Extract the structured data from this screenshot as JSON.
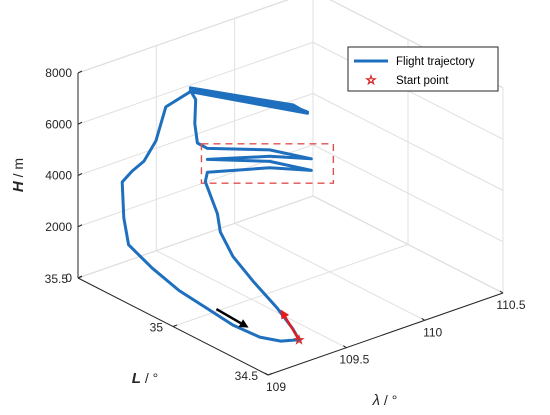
{
  "chart_data": {
    "type": "line",
    "projection": "3d",
    "xlabel": {
      "italic": "λ",
      "unit": " / °"
    },
    "ylabel": {
      "italic": "L",
      "unit": " / °"
    },
    "zlabel": {
      "italic": "H",
      "unit": " / m"
    },
    "xlim": [
      109,
      110.5
    ],
    "ylim": [
      34.5,
      35.5
    ],
    "zlim": [
      0,
      8000
    ],
    "xticks": [
      "109",
      "109.5",
      "110",
      "110.5"
    ],
    "yticks": [
      "34.5",
      "35",
      "35.5"
    ],
    "zticks": [
      "0",
      "2000",
      "4000",
      "6000",
      "8000"
    ],
    "grid": true,
    "legend_position": "top-right",
    "series": [
      {
        "name": "Flight trajectory",
        "color": "#1f6fbf",
        "points": [
          [
            109.38,
            34.65,
            0
          ],
          [
            109.4,
            34.7,
            200
          ],
          [
            109.42,
            34.8,
            600
          ],
          [
            109.45,
            34.95,
            1000
          ],
          [
            109.48,
            35.08,
            1400
          ],
          [
            109.52,
            35.18,
            1900
          ],
          [
            109.55,
            35.22,
            2400
          ],
          [
            109.57,
            35.3,
            3300
          ],
          [
            109.62,
            35.33,
            3450
          ],
          [
            109.86,
            35.2,
            3600
          ],
          [
            109.98,
            35.08,
            3700
          ],
          [
            109.86,
            35.2,
            3850
          ],
          [
            109.62,
            35.33,
            3950
          ],
          [
            109.86,
            35.2,
            4050
          ],
          [
            109.98,
            35.08,
            4150
          ],
          [
            109.86,
            35.2,
            4300
          ],
          [
            109.62,
            35.33,
            4380
          ],
          [
            109.58,
            35.35,
            4600
          ],
          [
            109.6,
            35.38,
            5200
          ],
          [
            109.63,
            35.4,
            6000
          ],
          [
            109.62,
            35.42,
            6300
          ],
          [
            109.95,
            35.15,
            6000
          ],
          [
            109.98,
            35.1,
            5900
          ],
          [
            109.62,
            35.42,
            6400
          ],
          [
            109.95,
            35.15,
            6050
          ],
          [
            109.98,
            35.1,
            5850
          ],
          [
            109.62,
            35.42,
            6250
          ],
          [
            109.5,
            35.45,
            5800
          ],
          [
            109.4,
            35.42,
            4800
          ],
          [
            109.3,
            35.4,
            4300
          ],
          [
            109.2,
            35.38,
            4200
          ],
          [
            109.1,
            35.35,
            4100
          ],
          [
            109.05,
            35.3,
            3000
          ],
          [
            109.02,
            35.25,
            2200
          ],
          [
            109.05,
            35.15,
            1600
          ],
          [
            109.1,
            35.05,
            1000
          ],
          [
            109.15,
            34.95,
            600
          ],
          [
            109.2,
            34.85,
            200
          ],
          [
            109.25,
            34.75,
            0
          ],
          [
            109.3,
            34.68,
            0
          ],
          [
            109.38,
            34.65,
            0
          ]
        ]
      },
      {
        "name": "Start point",
        "color": "#d62728",
        "marker": "star",
        "points": [
          [
            109.38,
            34.65,
            0
          ]
        ]
      }
    ],
    "annotations": [
      {
        "type": "arrow",
        "color": "#e41a1c",
        "from": [
          109.38,
          34.65,
          0
        ],
        "to": [
          109.42,
          34.78,
          600
        ]
      },
      {
        "type": "arrow",
        "color": "#000000",
        "from": [
          109.18,
          34.92,
          600
        ],
        "to": [
          109.24,
          34.8,
          200
        ]
      },
      {
        "type": "dashed-rectangle",
        "color": "#e05050",
        "z_range": [
          3200,
          4400
        ]
      }
    ]
  }
}
